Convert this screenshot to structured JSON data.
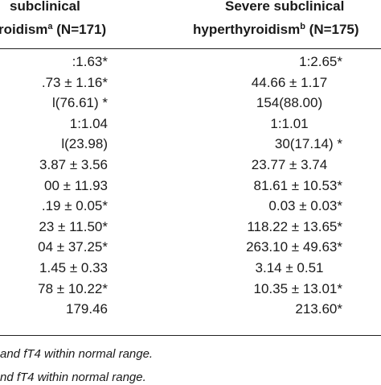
{
  "header": {
    "col1_line1": "subclinical",
    "col1_line2_pre": "roidism",
    "col1_sup": "a",
    "col1_line2_post": " (N=171)",
    "col2_line1": "Severe subclinical",
    "col2_line2_pre": "hyperthyroidism",
    "col2_sup": "b",
    "col2_line2_post": " (N=175)"
  },
  "rows": [
    {
      "c1": ":1.63*",
      "c2": "1:2.65*"
    },
    {
      "c1": ".73 ± 1.16*",
      "c2": "44.66 ± 1.17"
    },
    {
      "c1": "l(76.61) *",
      "c2": "154(88.00)"
    },
    {
      "c1": "1:1.04",
      "c2": "1:1.01"
    },
    {
      "c1": "l(23.98)",
      "c2": "30(17.14) *"
    },
    {
      "c1": "3.87 ± 3.56",
      "c2": "23.77 ± 3.74"
    },
    {
      "c1": "00 ± 11.93",
      "c2": "81.61 ± 10.53*"
    },
    {
      "c1": ".19 ± 0.05*",
      "c2": "0.03 ± 0.03*"
    },
    {
      "c1": "23 ± 11.50*",
      "c2": "118.22 ± 13.65*"
    },
    {
      "c1": "04 ± 37.25*",
      "c2": "263.10 ± 49.63*"
    },
    {
      "c1": "1.45 ± 0.33",
      "c2": "3.14 ± 0.51"
    },
    {
      "c1": "78 ± 10.22*",
      "c2": "10.35 ± 13.01*"
    },
    {
      "c1": "179.46",
      "c2": "213.60*"
    }
  ],
  "footnotes": [
    "and fT4 within normal range.",
    "nd fT4 within normal range."
  ]
}
